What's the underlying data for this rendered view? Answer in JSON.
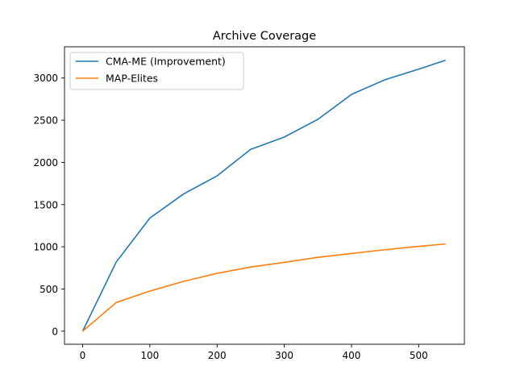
{
  "chart_data": {
    "type": "line",
    "title": "Archive Coverage",
    "xlabel": "",
    "ylabel": "",
    "xlim": [
      -27,
      568
    ],
    "ylim": [
      -155,
      3370
    ],
    "xticks": [
      0,
      100,
      200,
      300,
      400,
      500
    ],
    "yticks": [
      0,
      500,
      1000,
      1500,
      2000,
      2500,
      3000
    ],
    "grid": false,
    "legend_position": "top-left",
    "series": [
      {
        "name": "CMA-ME (Improvement)",
        "color": "#1f77b4",
        "x": [
          0,
          50,
          100,
          150,
          200,
          250,
          300,
          350,
          400,
          450,
          500,
          540
        ],
        "y": [
          0,
          820,
          1340,
          1625,
          1840,
          2155,
          2300,
          2510,
          2805,
          2980,
          3105,
          3210
        ]
      },
      {
        "name": "MAP-Elites",
        "color": "#ff7f0e",
        "x": [
          0,
          50,
          100,
          150,
          200,
          250,
          300,
          350,
          400,
          450,
          500,
          540
        ],
        "y": [
          0,
          340,
          475,
          590,
          685,
          760,
          815,
          875,
          920,
          965,
          1005,
          1033
        ]
      }
    ]
  }
}
